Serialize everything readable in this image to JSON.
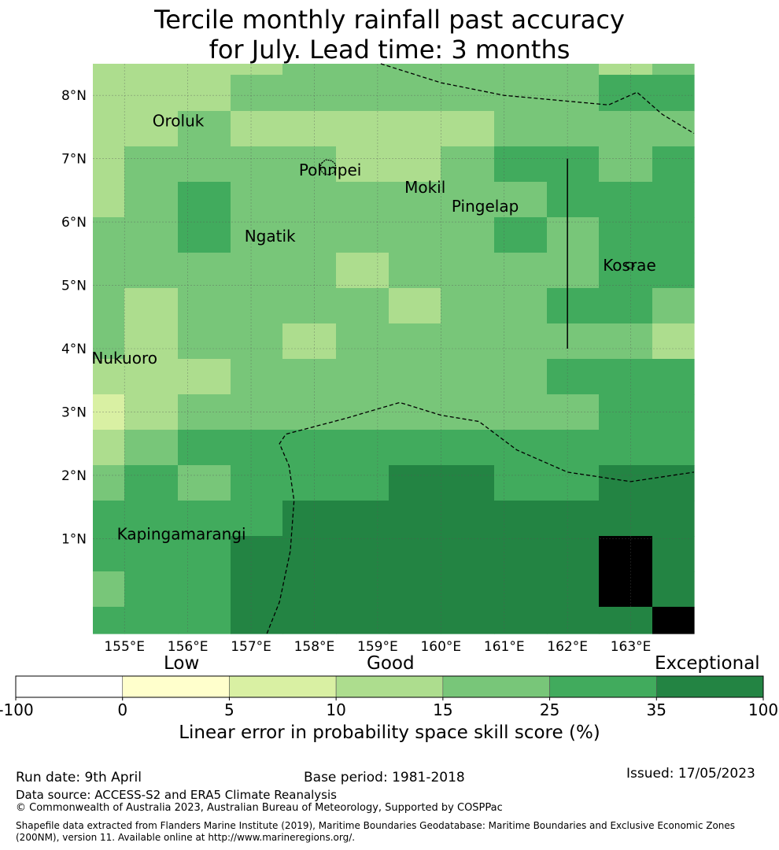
{
  "title": {
    "line1": "Tercile monthly rainfall past accuracy",
    "line2": "for July. Lead time: 3 months"
  },
  "map": {
    "lon_range": [
      154.5,
      164.0
    ],
    "lat_range": [
      -0.5,
      8.5
    ],
    "lon_ticks": [
      155,
      156,
      157,
      158,
      159,
      160,
      161,
      162,
      163
    ],
    "lon_tick_labels": [
      "155°E",
      "156°E",
      "157°E",
      "158°E",
      "159°E",
      "160°E",
      "161°E",
      "162°E",
      "163°E"
    ],
    "lat_ticks": [
      1,
      2,
      3,
      4,
      5,
      6,
      7,
      8
    ],
    "lat_tick_labels": [
      "1°N",
      "2°N",
      "3°N",
      "4°N",
      "5°N",
      "6°N",
      "7°N",
      "8°N"
    ],
    "grid_lines": true,
    "grid_col_edges": [
      154.5,
      155.0,
      155.84,
      156.67,
      157.5,
      158.34,
      159.17,
      160.0,
      160.84,
      161.67,
      162.5,
      163.34,
      164.0
    ],
    "grid_row_edges": [
      8.5,
      8.32,
      7.76,
      7.2,
      6.64,
      6.08,
      5.52,
      4.96,
      4.4,
      3.84,
      3.28,
      2.72,
      2.16,
      1.6,
      1.04,
      0.48,
      -0.08,
      -0.5
    ],
    "skill_categories": [
      [
        3,
        3,
        3,
        3,
        4,
        4,
        4,
        4,
        4,
        4,
        3,
        4
      ],
      [
        3,
        3,
        3,
        4,
        4,
        4,
        4,
        4,
        4,
        4,
        5,
        5
      ],
      [
        3,
        3,
        4,
        3,
        3,
        3,
        3,
        3,
        4,
        4,
        4,
        4
      ],
      [
        3,
        4,
        4,
        4,
        4,
        3,
        3,
        4,
        5,
        5,
        4,
        5
      ],
      [
        3,
        4,
        5,
        4,
        4,
        4,
        4,
        4,
        4,
        5,
        5,
        5
      ],
      [
        4,
        4,
        5,
        4,
        4,
        4,
        4,
        4,
        5,
        4,
        5,
        5
      ],
      [
        4,
        4,
        4,
        4,
        4,
        3,
        4,
        4,
        4,
        4,
        5,
        5
      ],
      [
        4,
        3,
        4,
        4,
        4,
        4,
        3,
        4,
        4,
        5,
        5,
        4
      ],
      [
        4,
        3,
        4,
        4,
        3,
        4,
        4,
        4,
        4,
        4,
        4,
        3
      ],
      [
        3,
        3,
        3,
        4,
        4,
        4,
        4,
        4,
        4,
        5,
        5,
        5
      ],
      [
        2,
        3,
        4,
        4,
        4,
        4,
        4,
        4,
        4,
        4,
        5,
        5
      ],
      [
        3,
        4,
        5,
        5,
        5,
        5,
        5,
        5,
        5,
        5,
        5,
        5
      ],
      [
        4,
        5,
        4,
        5,
        5,
        5,
        6,
        6,
        5,
        5,
        6,
        6
      ],
      [
        5,
        5,
        5,
        5,
        6,
        6,
        6,
        6,
        6,
        6,
        6,
        6
      ],
      [
        5,
        5,
        5,
        6,
        6,
        6,
        6,
        6,
        6,
        6,
        7,
        6
      ],
      [
        4,
        5,
        5,
        6,
        6,
        6,
        6,
        6,
        6,
        6,
        7,
        6
      ],
      [
        5,
        5,
        5,
        6,
        6,
        6,
        6,
        6,
        6,
        6,
        6,
        7
      ]
    ],
    "places": [
      {
        "name": "Oroluk",
        "lon": 155.85,
        "lat": 7.6
      },
      {
        "name": "Pohnpei",
        "lon": 158.25,
        "lat": 6.82
      },
      {
        "name": "Mokil",
        "lon": 159.75,
        "lat": 6.55
      },
      {
        "name": "Pingelap",
        "lon": 160.7,
        "lat": 6.25
      },
      {
        "name": "Ngatik",
        "lon": 157.3,
        "lat": 5.78
      },
      {
        "name": "Kosrae",
        "lon": 162.98,
        "lat": 5.32
      },
      {
        "name": "Nukuoro",
        "lon": 155.0,
        "lat": 3.85
      },
      {
        "name": "Kapingamarangi",
        "lon": 155.9,
        "lat": 1.07
      }
    ],
    "eez_boundaries": [
      [
        [
          159.05,
          8.5
        ],
        [
          160.0,
          8.2
        ],
        [
          161.0,
          8.0
        ],
        [
          162.65,
          7.85
        ],
        [
          163.1,
          8.05
        ],
        [
          163.5,
          7.7
        ],
        [
          164.0,
          7.4
        ]
      ],
      [
        [
          157.25,
          -0.5
        ],
        [
          157.45,
          0.0
        ],
        [
          157.62,
          0.8
        ],
        [
          157.68,
          1.6
        ],
        [
          157.6,
          2.15
        ],
        [
          157.45,
          2.5
        ],
        [
          157.55,
          2.65
        ],
        [
          158.5,
          2.9
        ],
        [
          159.35,
          3.15
        ],
        [
          160.0,
          2.95
        ],
        [
          160.6,
          2.85
        ],
        [
          161.2,
          2.4
        ],
        [
          162.0,
          2.05
        ],
        [
          163.0,
          1.9
        ],
        [
          164.0,
          2.05
        ]
      ]
    ],
    "lon_line": {
      "lon": 162.0,
      "lat_range": [
        4.0,
        7.0
      ]
    }
  },
  "legend": {
    "category_labels": {
      "low": "Low",
      "good": "Good",
      "exceptional": "Exceptional"
    },
    "boundaries": [
      -100,
      0,
      5,
      10,
      15,
      25,
      35,
      100
    ],
    "tick_labels": [
      "-100",
      "0",
      "5",
      "10",
      "15",
      "25",
      "35",
      "100"
    ],
    "colors": [
      "#ffffff",
      "#ffffcc",
      "#d9f0a3",
      "#addd8e",
      "#78c679",
      "#41ab5d",
      "#238443"
    ],
    "label": "Linear error in probability space skill score (%)"
  },
  "footer": {
    "run_date": "Run date: 9th April",
    "base_period": "Base period: 1981-2018",
    "issued": "Issued: 17/05/2023",
    "data_source": "Data source: ACCESS-S2 and ERA5 Climate Reanalysis",
    "copyright": "© Commonwealth of Australia 2023, Australian Bureau of Meteorology, Supported by COSPPac",
    "shapefile": "Shapefile data extracted from Flanders Marine Institute (2019), Maritime Boundaries Geodatabase: Maritime Boundaries and Exclusive Economic Zones (200NM), version 11. Available online at http://www.marineregions.org/."
  }
}
